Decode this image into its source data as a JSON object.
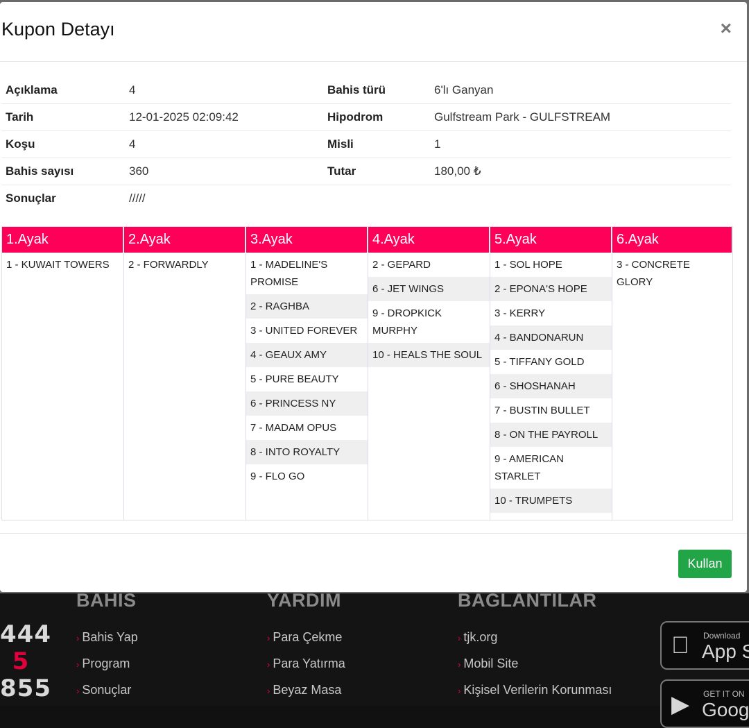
{
  "modal": {
    "title": "Kupon Detayı",
    "close_icon": "×",
    "info": [
      {
        "k1": "Açıklama",
        "v1": "4",
        "k2": "Bahis türü",
        "v2": "6'lı Ganyan"
      },
      {
        "k1": "Tarih",
        "v1": "12-01-2025 02:09:42",
        "k2": "Hipodrom",
        "v2": "Gulfstream Park - GULFSTREAM"
      },
      {
        "k1": "Koşu",
        "v1": "4",
        "k2": "Misli",
        "v2": "1"
      },
      {
        "k1": "Bahis sayısı",
        "v1": "360",
        "k2": "Tutar",
        "v2": "180,00 ₺"
      },
      {
        "k1": "Sonuçlar",
        "v1": "/////",
        "k2": "",
        "v2": ""
      }
    ],
    "legs": [
      {
        "title": "1.Ayak",
        "items": [
          "1 - KUWAIT TOWERS"
        ]
      },
      {
        "title": "2.Ayak",
        "items": [
          "2 - FORWARDLY"
        ]
      },
      {
        "title": "3.Ayak",
        "items": [
          "1 - MADELINE'S PROMISE",
          "2 - RAGHBA",
          "3 - UNITED FOREVER",
          "4 - GEAUX AMY",
          "5 - PURE BEAUTY",
          "6 - PRINCESS NY",
          "7 - MADAM OPUS",
          "8 - INTO ROYALTY",
          "9 - FLO GO"
        ]
      },
      {
        "title": "4.Ayak",
        "items": [
          "2 - GEPARD",
          "6 - JET WINGS",
          "9 - DROPKICK MURPHY",
          "10 - HEALS THE SOUL"
        ]
      },
      {
        "title": "5.Ayak",
        "items": [
          "1 - SOL HOPE",
          "2 - EPONA'S HOPE",
          "3 - KERRY",
          "4 - BANDONARUN",
          "5 - TIFFANY GOLD",
          "6 - SHOSHANAH",
          "7 - BUSTIN BULLET",
          "8 - ON THE PAYROLL",
          "9 - AMERICAN STARLET",
          "10 - TRUMPETS"
        ]
      },
      {
        "title": "6.Ayak",
        "items": [
          "3 - CONCRETE GLORY"
        ]
      }
    ],
    "use_button": "Kullan"
  },
  "footer": {
    "phone_top": "444",
    "phone_mid": "5",
    "phone_bottom": "855",
    "columns": [
      {
        "title": "BAHIS",
        "links": [
          "Bahis Yap",
          "Program",
          "Sonuçlar"
        ]
      },
      {
        "title": "YARDIM",
        "links": [
          "Para Çekme",
          "Para Yatırma",
          "Beyaz Masa"
        ]
      },
      {
        "title": "BAGLANTILAR",
        "links": [
          "tjk.org",
          "Mobil Site",
          "Kişisel Verilerin Korunması"
        ]
      }
    ],
    "app_store": {
      "small": "Download",
      "big": "App S"
    },
    "google_play": {
      "small": "GET IT ON",
      "big": "Goog"
    }
  },
  "colors": {
    "leg_header": "#ff0058",
    "use_button": "#21a546",
    "footer_bg": "#141414",
    "accent": "#e0003c"
  }
}
